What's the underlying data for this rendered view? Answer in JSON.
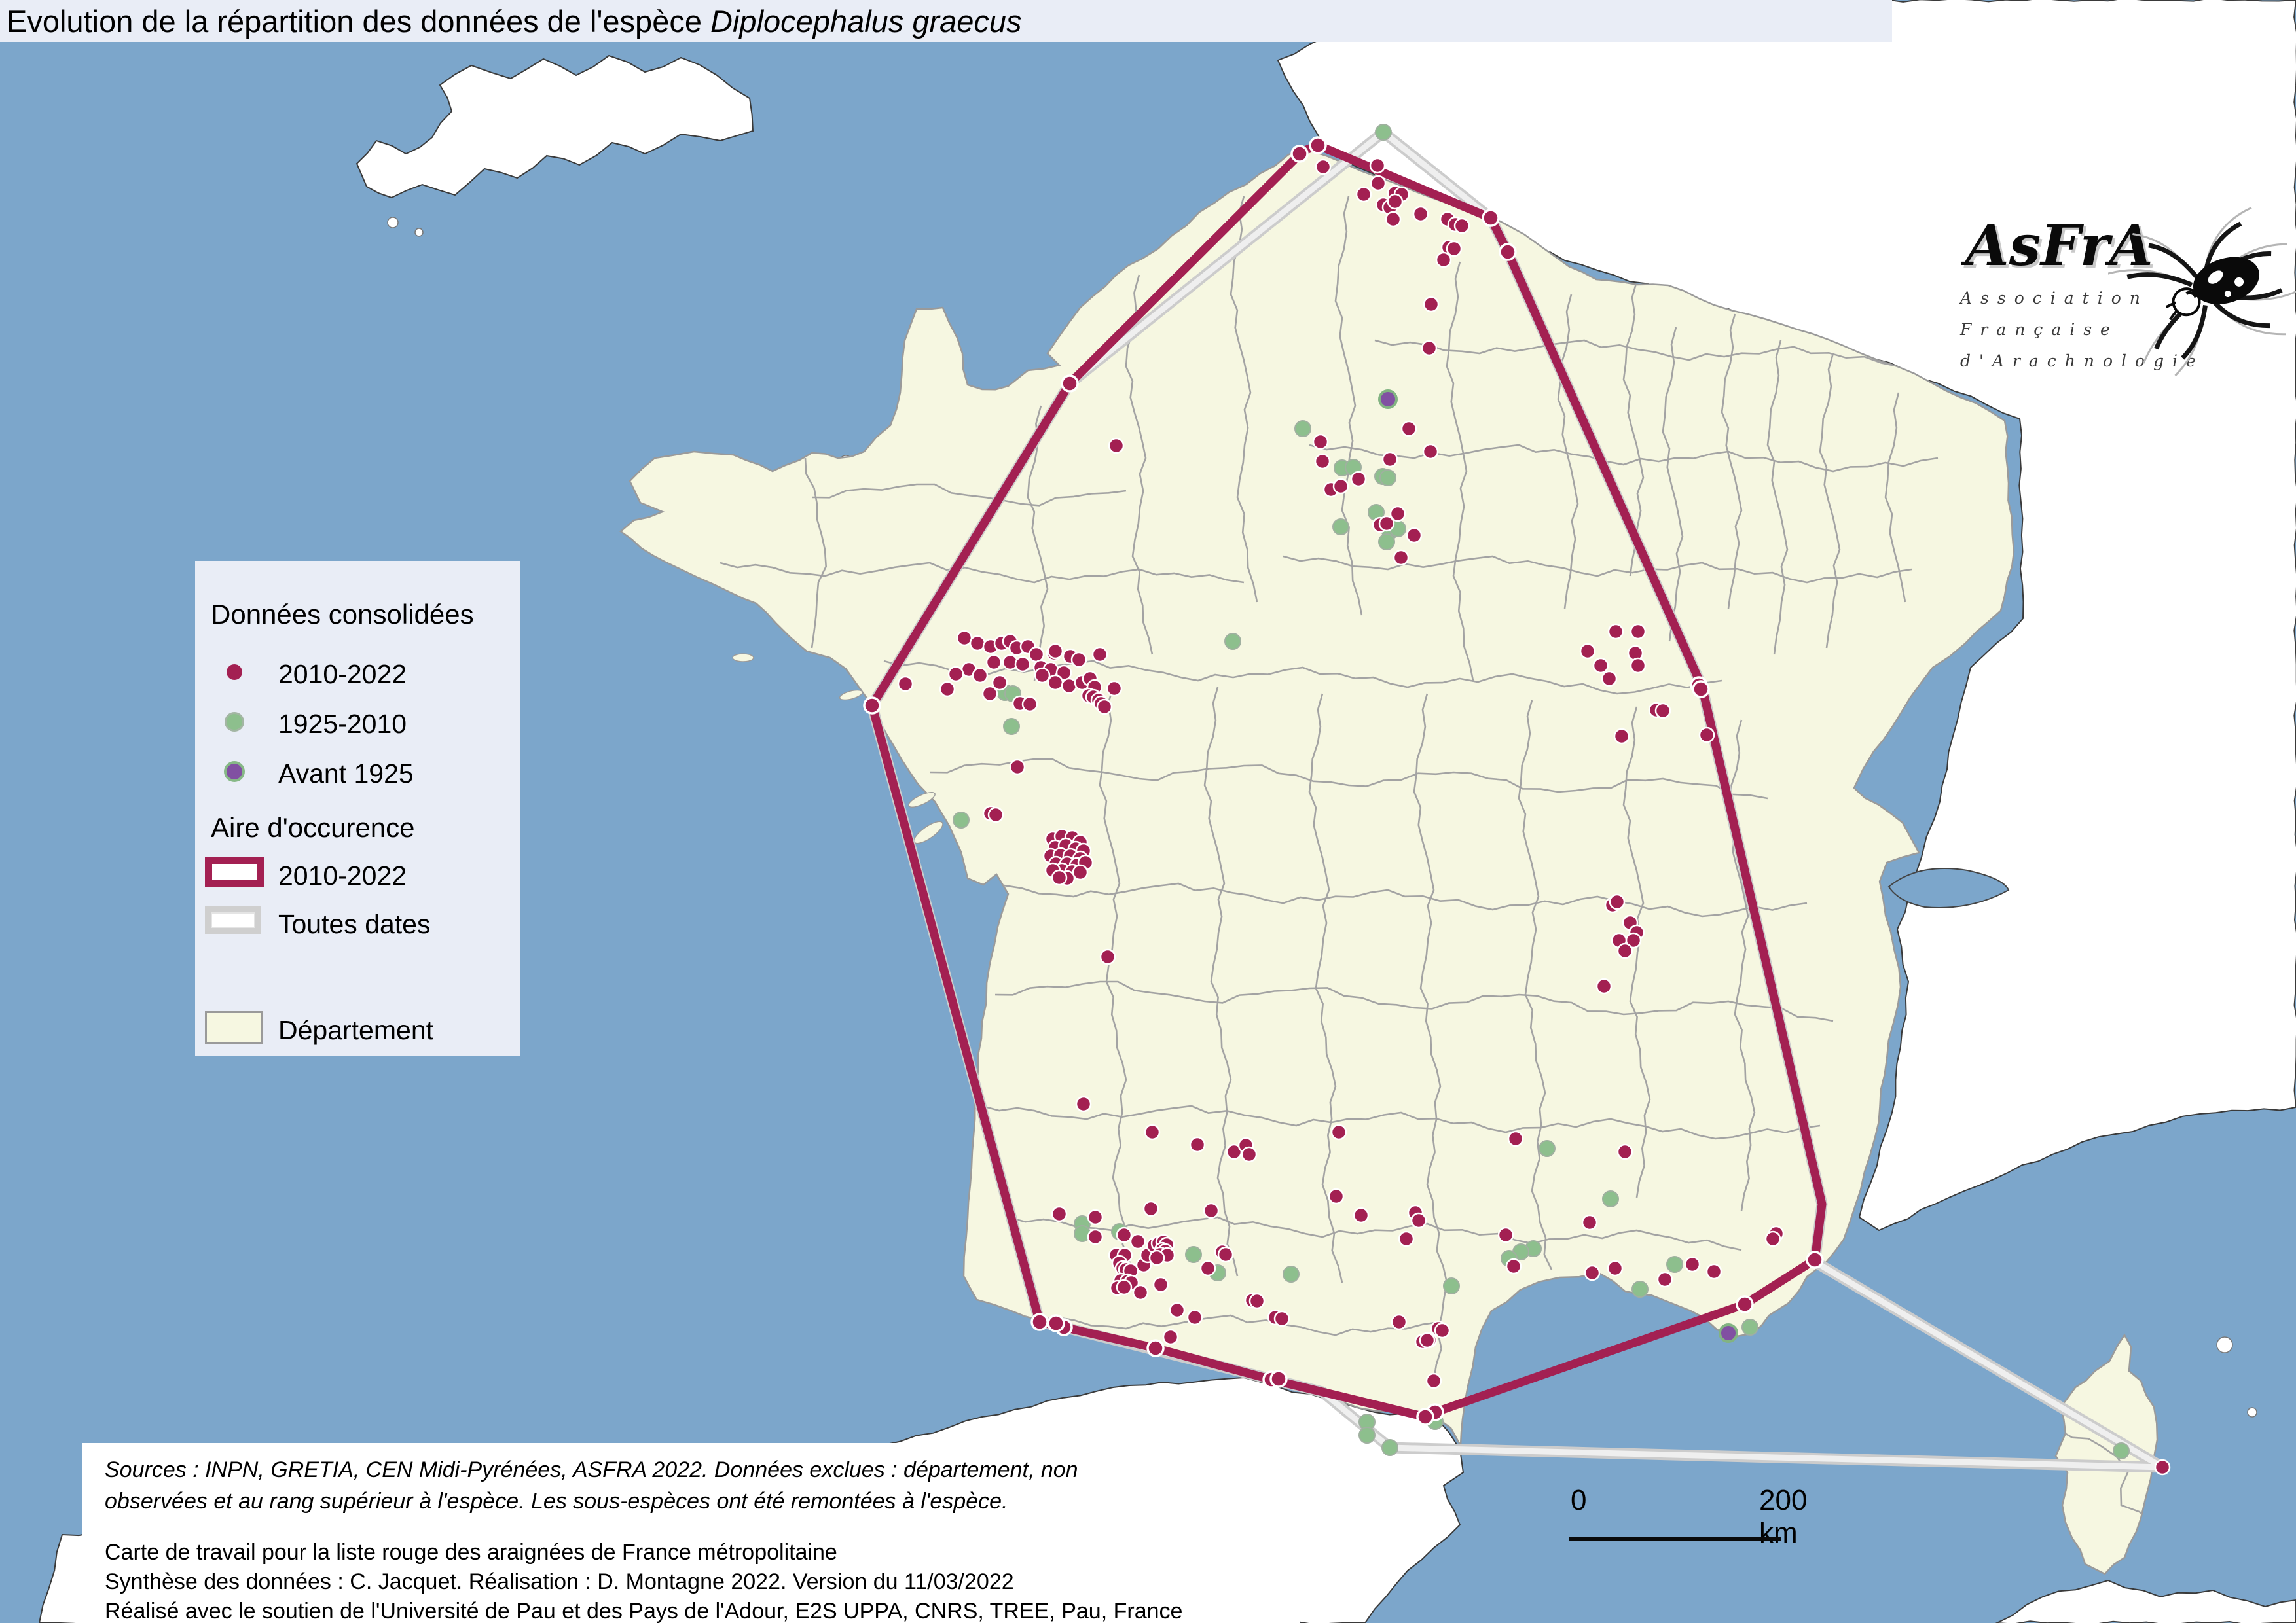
{
  "title": {
    "prefix": "Evolution de la répartition des données de l'espèce ",
    "species": "Diplocephalus graecus"
  },
  "legend": {
    "points_header": "Données consolidées",
    "point_items": [
      {
        "label": "2010-2022",
        "color": "#a32052"
      },
      {
        "label": "1925-2010",
        "color": "#8dbf8d"
      },
      {
        "label": "Avant 1925",
        "color": "#8150a2"
      }
    ],
    "area_header": "Aire d'occurence",
    "area_items": [
      {
        "label": "2010-2022",
        "border": "#a32052"
      },
      {
        "label": "Toutes dates",
        "border": "#cfcfcf"
      }
    ],
    "department_label": "Département"
  },
  "logo": {
    "name": "AsFrA",
    "line1": "Association",
    "line2": "Française",
    "line3": "d'Arachnologie"
  },
  "scalebar": {
    "start": "0",
    "end": "200 km"
  },
  "sources": [
    "Sources : INPN, GRETIA, CEN Midi-Pyrénées, ASFRA 2022. Données exclues : département, non",
    "observées et au rang supérieur à l'espèce. Les sous-espèces ont été remontées à l'espèce."
  ],
  "credits": [
    "Carte de travail pour la liste rouge des araignées de France métropolitaine",
    "Synthèse des données : C. Jacquet. Réalisation : D. Montagne 2022. Version du 11/03/2022",
    "Réalisé avec le soutien de l'Université de Pau et des Pays de l'Adour, E2S UPPA, CNRS, TREE, Pau, France"
  ],
  "colors": {
    "sea": "#7ca6cb",
    "france": "#f6f7e1",
    "foreign": "#ffffff",
    "border": "#9a9a9a",
    "recent": "#a32052",
    "old": "#8dbf8d",
    "ancient": "#8150a2",
    "hull_all": "#cccccc",
    "panel": "#e9edf6"
  },
  "map_data": {
    "type": "point-map",
    "hull_2010_2022": [
      [
        1990,
        231
      ],
      [
        2013,
        222
      ],
      [
        2277,
        333
      ],
      [
        2303,
        385
      ],
      [
        2600,
        1050
      ],
      [
        2783,
        1840
      ],
      [
        2772,
        1925
      ],
      [
        2665,
        1993
      ],
      [
        2192,
        2158
      ],
      [
        2177,
        2165
      ],
      [
        1942,
        2108
      ],
      [
        1765,
        2060
      ],
      [
        1625,
        2028
      ],
      [
        1588,
        2020
      ],
      [
        1332,
        1078
      ],
      [
        1634,
        586
      ]
    ],
    "hull_all_dates": [
      [
        2113,
        202
      ],
      [
        2277,
        333
      ],
      [
        2303,
        385
      ],
      [
        2600,
        1050
      ],
      [
        2783,
        1840
      ],
      [
        2772,
        1928
      ],
      [
        3303,
        2242
      ],
      [
        2123,
        2212
      ],
      [
        2020,
        2127
      ],
      [
        1625,
        2028
      ],
      [
        1588,
        2020
      ],
      [
        1332,
        1078
      ],
      [
        1634,
        586
      ]
    ],
    "hull_vertex_dots": [
      [
        1985,
        235
      ],
      [
        2013,
        222
      ],
      [
        2277,
        333
      ],
      [
        2303,
        385
      ],
      [
        2595,
        1047
      ],
      [
        2598,
        1053
      ],
      [
        2772,
        1925
      ],
      [
        2665,
        1993
      ],
      [
        2192,
        2158
      ],
      [
        2177,
        2165
      ],
      [
        1942,
        2108
      ],
      [
        1953,
        2107
      ],
      [
        1765,
        2060
      ],
      [
        1625,
        2028
      ],
      [
        1613,
        2022
      ],
      [
        1588,
        2020
      ],
      [
        1332,
        1078
      ],
      [
        1634,
        586
      ]
    ],
    "points_2010_2022": [
      [
        2021,
        255
      ],
      [
        2104,
        253
      ],
      [
        2083,
        297
      ],
      [
        2105,
        280
      ],
      [
        2131,
        295
      ],
      [
        2141,
        297
      ],
      [
        2113,
        313
      ],
      [
        2123,
        317
      ],
      [
        2131,
        308
      ],
      [
        2128,
        335
      ],
      [
        2170,
        327
      ],
      [
        2211,
        335
      ],
      [
        2223,
        343
      ],
      [
        2233,
        345
      ],
      [
        2213,
        378
      ],
      [
        2221,
        380
      ],
      [
        2205,
        397
      ],
      [
        2186,
        465
      ],
      [
        2183,
        532
      ],
      [
        2152,
        655
      ],
      [
        2185,
        690
      ],
      [
        2123,
        702
      ],
      [
        2017,
        675
      ],
      [
        2020,
        705
      ],
      [
        2075,
        732
      ],
      [
        2033,
        748
      ],
      [
        2048,
        743
      ],
      [
        2135,
        785
      ],
      [
        2108,
        802
      ],
      [
        2118,
        800
      ],
      [
        2160,
        818
      ],
      [
        2140,
        852
      ],
      [
        1705,
        681
      ],
      [
        1473,
        975
      ],
      [
        1493,
        983
      ],
      [
        1513,
        988
      ],
      [
        1530,
        983
      ],
      [
        1543,
        980
      ],
      [
        1553,
        990
      ],
      [
        1570,
        988
      ],
      [
        1583,
        1000
      ],
      [
        1610,
        998
      ],
      [
        1635,
        1003
      ],
      [
        1612,
        995
      ],
      [
        1648,
        1008
      ],
      [
        1680,
        1000
      ],
      [
        1518,
        1012
      ],
      [
        1543,
        1012
      ],
      [
        1562,
        1015
      ],
      [
        1590,
        1020
      ],
      [
        1605,
        1023
      ],
      [
        1625,
        1028
      ],
      [
        1480,
        1023
      ],
      [
        1460,
        1030
      ],
      [
        1497,
        1032
      ],
      [
        1527,
        1043
      ],
      [
        1592,
        1032
      ],
      [
        1612,
        1043
      ],
      [
        1633,
        1048
      ],
      [
        1512,
        1060
      ],
      [
        1558,
        1075
      ],
      [
        1653,
        1043
      ],
      [
        1665,
        1037
      ],
      [
        1672,
        1050
      ],
      [
        1663,
        1063
      ],
      [
        1670,
        1065
      ],
      [
        1678,
        1070
      ],
      [
        1682,
        1075
      ],
      [
        1702,
        1052
      ],
      [
        1687,
        1080
      ],
      [
        1383,
        1045
      ],
      [
        1447,
        1053
      ],
      [
        1573,
        1076
      ],
      [
        1554,
        1172
      ],
      [
        1513,
        1243
      ],
      [
        1521,
        1245
      ],
      [
        1608,
        1282
      ],
      [
        1622,
        1278
      ],
      [
        1638,
        1280
      ],
      [
        1650,
        1287
      ],
      [
        1612,
        1295
      ],
      [
        1628,
        1292
      ],
      [
        1643,
        1297
      ],
      [
        1655,
        1300
      ],
      [
        1605,
        1308
      ],
      [
        1620,
        1307
      ],
      [
        1635,
        1308
      ],
      [
        1650,
        1312
      ],
      [
        1613,
        1320
      ],
      [
        1630,
        1320
      ],
      [
        1645,
        1322
      ],
      [
        1658,
        1318
      ],
      [
        1622,
        1330
      ],
      [
        1638,
        1332
      ],
      [
        1608,
        1330
      ],
      [
        1650,
        1333
      ],
      [
        1630,
        1342
      ],
      [
        1618,
        1341
      ],
      [
        1692,
        1462
      ],
      [
        1655,
        1687
      ],
      [
        1760,
        1730
      ],
      [
        1829,
        1749
      ],
      [
        1885,
        1760
      ],
      [
        1903,
        1750
      ],
      [
        1908,
        1764
      ],
      [
        2045,
        1730
      ],
      [
        2041,
        1828
      ],
      [
        1758,
        1847
      ],
      [
        1850,
        1850
      ],
      [
        2079,
        1857
      ],
      [
        1673,
        1860
      ],
      [
        2468,
        965
      ],
      [
        2502,
        965
      ],
      [
        2425,
        995
      ],
      [
        2498,
        998
      ],
      [
        2445,
        1017
      ],
      [
        2502,
        1017
      ],
      [
        2458,
        1037
      ],
      [
        2530,
        1085
      ],
      [
        2540,
        1086
      ],
      [
        2477,
        1125
      ],
      [
        2607,
        1123
      ],
      [
        2463,
        1383
      ],
      [
        2470,
        1378
      ],
      [
        2490,
        1410
      ],
      [
        2500,
        1425
      ],
      [
        2495,
        1437
      ],
      [
        2473,
        1437
      ],
      [
        2482,
        1453
      ],
      [
        2450,
        1507
      ],
      [
        1618,
        1855
      ],
      [
        1673,
        1890
      ],
      [
        1717,
        1887
      ],
      [
        1738,
        1897
      ],
      [
        1705,
        1918
      ],
      [
        1718,
        1918
      ],
      [
        1710,
        1930
      ],
      [
        1747,
        1933
      ],
      [
        1753,
        1918
      ],
      [
        1763,
        1903
      ],
      [
        1770,
        1900
      ],
      [
        1777,
        1898
      ],
      [
        1782,
        1902
      ],
      [
        1775,
        1910
      ],
      [
        1780,
        1912
      ],
      [
        1772,
        1917
      ],
      [
        1783,
        1918
      ],
      [
        1767,
        1922
      ],
      [
        1715,
        1938
      ],
      [
        1720,
        1940
      ],
      [
        1727,
        1942
      ],
      [
        1712,
        1957
      ],
      [
        1722,
        1958
      ],
      [
        1728,
        1960
      ],
      [
        1707,
        1968
      ],
      [
        1717,
        1967
      ],
      [
        1742,
        1975
      ],
      [
        1773,
        1963
      ],
      [
        1798,
        2002
      ],
      [
        1825,
        2013
      ],
      [
        1788,
        2043
      ],
      [
        1867,
        1913
      ],
      [
        1872,
        1917
      ],
      [
        1845,
        1938
      ],
      [
        1913,
        1987
      ],
      [
        1920,
        1988
      ],
      [
        1948,
        2013
      ],
      [
        1958,
        2015
      ],
      [
        2315,
        1740
      ],
      [
        2482,
        1760
      ],
      [
        2428,
        1868
      ],
      [
        2162,
        1853
      ],
      [
        2167,
        1865
      ],
      [
        2148,
        1893
      ],
      [
        2300,
        1887
      ],
      [
        2312,
        1935
      ],
      [
        2432,
        1945
      ],
      [
        2467,
        1938
      ],
      [
        2543,
        1955
      ],
      [
        2585,
        1932
      ],
      [
        2618,
        1943
      ],
      [
        2137,
        2020
      ],
      [
        2197,
        2030
      ],
      [
        2173,
        2050
      ],
      [
        2183,
        2048
      ],
      [
        2190,
        2110
      ],
      [
        2180,
        2048
      ],
      [
        2203,
        2033
      ],
      [
        2713,
        1885
      ],
      [
        2708,
        1893
      ],
      [
        3303,
        2242
      ]
    ],
    "points_1925_2010": [
      [
        2113,
        202
      ],
      [
        1990,
        655
      ],
      [
        2050,
        715
      ],
      [
        2067,
        714
      ],
      [
        2112,
        728
      ],
      [
        2120,
        730
      ],
      [
        2102,
        783
      ],
      [
        2048,
        805
      ],
      [
        2123,
        812
      ],
      [
        2135,
        808
      ],
      [
        2118,
        828
      ],
      [
        1883,
        980
      ],
      [
        1535,
        1058
      ],
      [
        1547,
        1060
      ],
      [
        1545,
        1110
      ],
      [
        1468,
        1253
      ],
      [
        1653,
        1870
      ],
      [
        1653,
        1885
      ],
      [
        1710,
        1882
      ],
      [
        1823,
        1917
      ],
      [
        1860,
        1945
      ],
      [
        1972,
        1947
      ],
      [
        2363,
        1755
      ],
      [
        2460,
        1832
      ],
      [
        2342,
        1908
      ],
      [
        2323,
        1913
      ],
      [
        2305,
        1923
      ],
      [
        2217,
        1965
      ],
      [
        2505,
        1970
      ],
      [
        2558,
        1932
      ],
      [
        2673,
        2028
      ],
      [
        2088,
        2173
      ],
      [
        2088,
        2193
      ],
      [
        2123,
        2212
      ],
      [
        2192,
        2172
      ],
      [
        3240,
        2217
      ]
    ],
    "points_avant_1925": [
      [
        2120,
        610
      ],
      [
        2640,
        2037
      ]
    ]
  }
}
